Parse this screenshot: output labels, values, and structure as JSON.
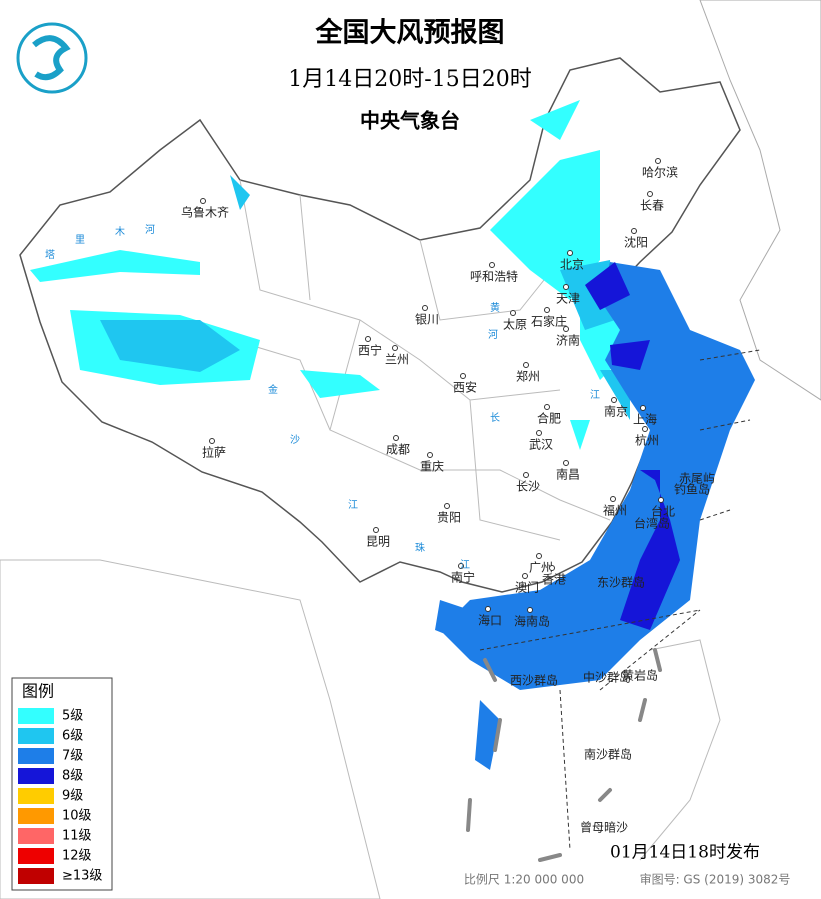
{
  "header": {
    "title": "全国大风预报图",
    "period": "1月14日20时-15日20时",
    "agency": "中央气象台"
  },
  "places": [
    "乌鲁木齐",
    "哈尔滨",
    "长春",
    "沈阳",
    "北京",
    "天津",
    "呼和浩特",
    "石家庄",
    "太原",
    "济南",
    "银川",
    "西宁",
    "兰州",
    "郑州",
    "西安",
    "南京",
    "上海",
    "合肥",
    "杭州",
    "武汉",
    "成都",
    "重庆",
    "拉萨",
    "长沙",
    "南昌",
    "福州",
    "台北",
    "贵阳",
    "昆明",
    "南宁",
    "广州",
    "澳门",
    "香港",
    "海口",
    "海南岛",
    "台湾岛",
    "东沙群岛",
    "西沙群岛",
    "中沙群岛",
    "黄岩岛",
    "南沙群岛",
    "曾母暗沙",
    "赤尾屿",
    "钓鱼岛"
  ],
  "rivers": [
    "塔",
    "里",
    "木",
    "河",
    "黄",
    "河",
    "长",
    "江",
    "金",
    "沙",
    "江",
    "珠",
    "江"
  ],
  "legend": {
    "title": "图例",
    "items": [
      {
        "label": "5级",
        "color": "#33ffff"
      },
      {
        "label": "6级",
        "color": "#1fc6f0"
      },
      {
        "label": "7级",
        "color": "#1e7ee8"
      },
      {
        "label": "8级",
        "color": "#1515d8"
      },
      {
        "label": "9级",
        "color": "#ffcc00"
      },
      {
        "label": "10级",
        "color": "#ff9900"
      },
      {
        "label": "11级",
        "color": "#ff6666"
      },
      {
        "label": "12级",
        "color": "#ee0000"
      },
      {
        "label": "≥13级",
        "color": "#c00000"
      }
    ]
  },
  "footer": {
    "issued": "01月14日18时发布",
    "scale": "比例尺 1:20 000 000",
    "approval": "审图号: GS (2019) 3082号"
  }
}
